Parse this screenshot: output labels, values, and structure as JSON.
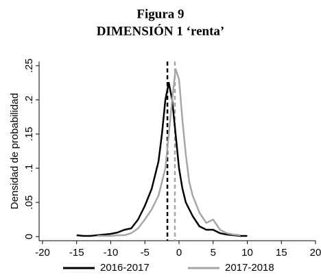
{
  "chart_data": {
    "type": "line",
    "title": "Figura 9",
    "subtitle": "DIMENSIÓN 1 ‘renta’",
    "ylabel": "Densidad de probabilidad",
    "xlim": [
      -20.5,
      20
    ],
    "ylim": [
      -0.006,
      0.256
    ],
    "xticks": [
      -20,
      -15,
      -10,
      -5,
      0,
      5,
      10,
      15,
      20
    ],
    "yticks": [
      0,
      {
        "value": 0.05,
        "label": ".05"
      },
      {
        "value": 0.1,
        "label": ".1"
      },
      {
        "value": 0.15,
        "label": ".15"
      },
      {
        "value": 0.2,
        "label": ".2"
      },
      {
        "value": 0.25,
        "label": ".25"
      }
    ],
    "series": [
      {
        "name": "2016-2017",
        "color": "#000000",
        "x": [
          -15,
          -14,
          -13,
          -12,
          -11,
          -10,
          -9,
          -8,
          -7,
          -6,
          -5,
          -4,
          -3,
          -2.5,
          -2,
          -1.5,
          -1,
          -0.5,
          0,
          0.5,
          1,
          2,
          3,
          4,
          5,
          6,
          7,
          8,
          9,
          10
        ],
        "values": [
          0.002,
          0.001,
          0.001,
          0.002,
          0.003,
          0.004,
          0.006,
          0.01,
          0.012,
          0.025,
          0.045,
          0.07,
          0.11,
          0.15,
          0.2,
          0.225,
          0.2,
          0.15,
          0.1,
          0.07,
          0.05,
          0.03,
          0.015,
          0.01,
          0.01,
          0.005,
          0.003,
          0.002,
          0.001,
          0.001
        ]
      },
      {
        "name": "2017-2018",
        "color": "#a6a6a6",
        "x": [
          -12,
          -11,
          -10,
          -9,
          -8,
          -7,
          -6,
          -5,
          -4,
          -3,
          -2,
          -1.5,
          -1,
          -0.5,
          0,
          0.5,
          1,
          1.5,
          2,
          3,
          4,
          5,
          6,
          7,
          8,
          9
        ],
        "values": [
          0.001,
          0.001,
          0.001,
          0.002,
          0.002,
          0.005,
          0.012,
          0.025,
          0.04,
          0.06,
          0.1,
          0.15,
          0.2,
          0.245,
          0.23,
          0.17,
          0.12,
          0.08,
          0.06,
          0.035,
          0.02,
          0.025,
          0.01,
          0.005,
          0.003,
          0.002
        ]
      }
    ],
    "reference_lines": [
      {
        "x": -1.7,
        "color": "#000000"
      },
      {
        "x": -0.6,
        "color": "#a6a6a6"
      }
    ]
  }
}
